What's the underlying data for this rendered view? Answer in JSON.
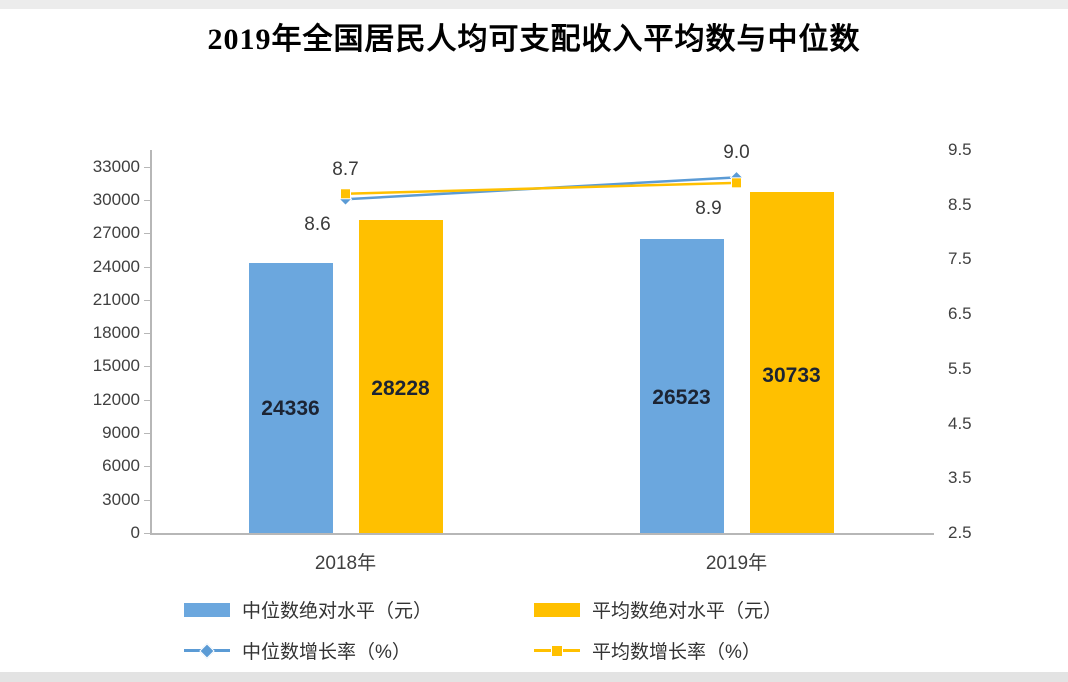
{
  "title": "2019年全国居民人均可支配收入平均数与中位数",
  "chart_data": {
    "type": "bar",
    "title": "2019年全国居民人均可支配收入平均数与中位数",
    "categories": [
      "2018年",
      "2019年"
    ],
    "bar_series": [
      {
        "name": "中位数绝对水平（元）",
        "color": "#6BA7DE",
        "values": [
          24336,
          26523
        ],
        "data_labels": [
          "24336",
          "26523"
        ]
      },
      {
        "name": "平均数绝对水平（元）",
        "color": "#FFC000",
        "values": [
          28228,
          30733
        ],
        "data_labels": [
          "28228",
          "30733"
        ]
      }
    ],
    "line_series": [
      {
        "name": "中位数增长率（%）",
        "color": "#5B9BD5",
        "marker": "diamond",
        "values": [
          8.6,
          9.0
        ],
        "data_labels": [
          "8.6",
          "9.0"
        ],
        "label_positions": [
          "below",
          "above"
        ]
      },
      {
        "name": "平均数增长率（%）",
        "color": "#FFC000",
        "marker": "square",
        "values": [
          8.7,
          8.9
        ],
        "data_labels": [
          "8.7",
          "8.9"
        ],
        "label_positions": [
          "above",
          "below"
        ]
      }
    ],
    "left_axis": {
      "min": 0,
      "max": 34500,
      "ticks": [
        0,
        3000,
        6000,
        9000,
        12000,
        15000,
        18000,
        21000,
        24000,
        27000,
        30000,
        33000
      ]
    },
    "right_axis": {
      "min": 2.5,
      "max": 9.5,
      "ticks": [
        2.5,
        3.5,
        4.5,
        5.5,
        6.5,
        7.5,
        8.5,
        9.5
      ]
    },
    "legend_position": "bottom",
    "grid": false
  },
  "colors": {
    "bar_value_label": "#1c2433",
    "axis_text": "#404040",
    "axis_line": "#b7b7b7",
    "title_text": "#000000"
  }
}
